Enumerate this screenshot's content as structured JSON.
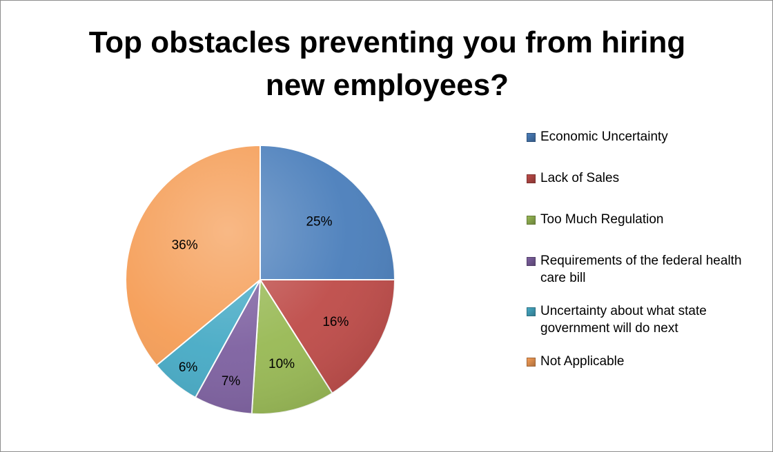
{
  "chart_data": {
    "type": "pie",
    "title": "Top obstacles preventing you from hiring new employees?",
    "categories": [
      "Economic Uncertainty",
      "Lack of Sales",
      "Too Much Regulation",
      "Requirements of the federal health care bill",
      "Uncertainty about what state government will do next",
      "Not Applicable"
    ],
    "values": [
      25,
      16,
      10,
      7,
      6,
      36
    ],
    "labels": [
      "25%",
      "16%",
      "10%",
      "7%",
      "6%",
      "36%"
    ],
    "colors": [
      "#4a7ebb",
      "#be4b48",
      "#98b954",
      "#7d60a0",
      "#46aac5",
      "#f59d56"
    ],
    "legend": "right"
  }
}
